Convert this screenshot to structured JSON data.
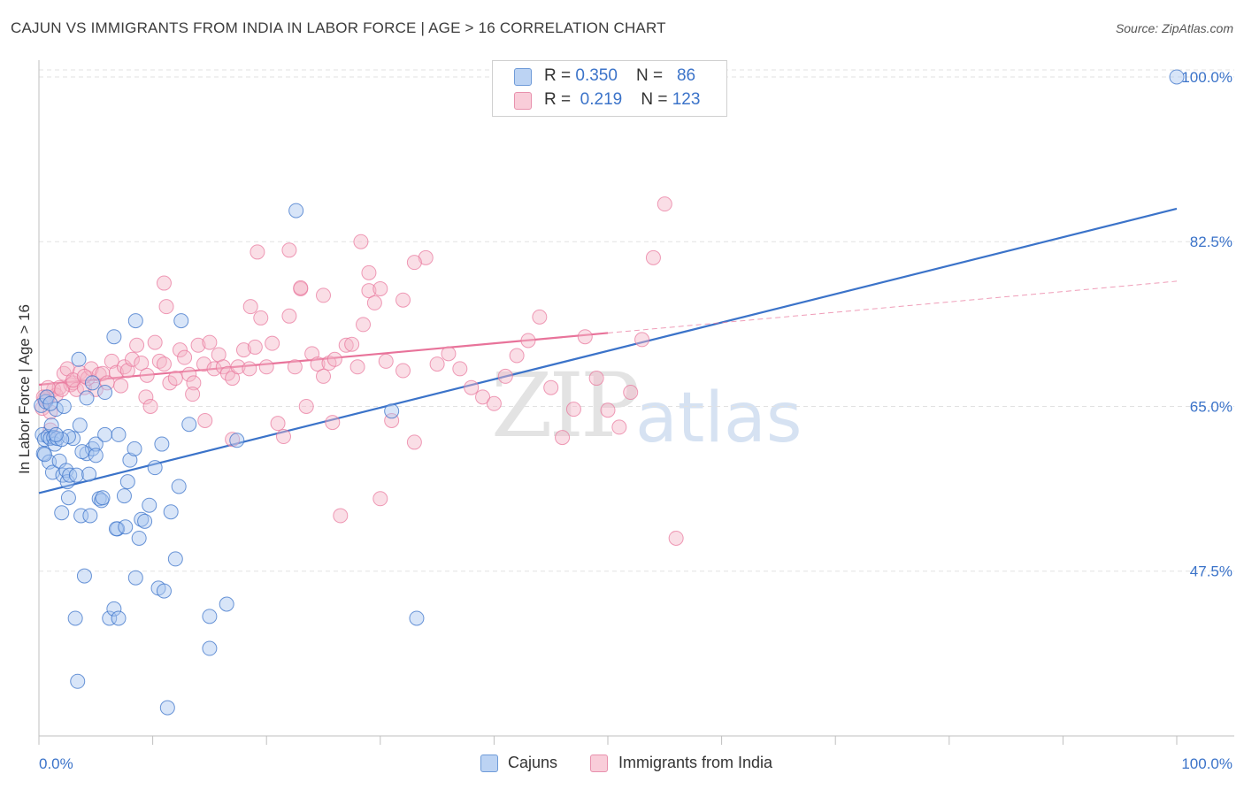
{
  "header": {
    "title": "CAJUN VS IMMIGRANTS FROM INDIA IN LABOR FORCE | AGE > 16 CORRELATION CHART",
    "source": "Source: ZipAtlas.com"
  },
  "watermark": {
    "zip": "ZIP",
    "atlas": "atlas"
  },
  "legend": {
    "rows": [
      {
        "r_label": "R = ",
        "r_value": "0.350",
        "n_label": "N = ",
        "n_value": "86",
        "color": "#a9c6ef"
      },
      {
        "r_label": "R = ",
        "r_value": "0.219",
        "n_label": "N = ",
        "n_value": "123",
        "color": "#f4b6c8"
      }
    ]
  },
  "bottom_legend": {
    "items": [
      "Cajuns",
      "Immigrants from India"
    ]
  },
  "chart_data": {
    "type": "scatter",
    "title": "CAJUN VS IMMIGRANTS FROM INDIA IN LABOR FORCE | AGE > 16 CORRELATION CHART",
    "ylabel": "In Labor Force | Age > 16",
    "xlabel": "",
    "xlim": [
      0,
      100
    ],
    "ylim": [
      30,
      101.5
    ],
    "x_tick_labels": [
      "0.0%",
      "100.0%"
    ],
    "y_tick_labels": [
      "47.5%",
      "65.0%",
      "82.5%",
      "100.0%"
    ],
    "y_ticks": [
      47.5,
      65.0,
      82.5,
      100.0
    ],
    "grid": true,
    "colors": {
      "cajuns": "#3b73c9",
      "india": "#e8739a",
      "cajuns_fill": "#a9c6ef",
      "india_fill": "#f4b6c8",
      "tick_label": "#3b73c9"
    },
    "series": [
      {
        "name": "Cajuns",
        "trend": {
          "x": [
            0,
            100
          ],
          "y": [
            55.8,
            86.0
          ]
        },
        "points": [
          [
            0.2,
            65.1
          ],
          [
            0.3,
            62.0
          ],
          [
            0.4,
            60.0
          ],
          [
            0.5,
            61.5
          ],
          [
            0.6,
            65.5
          ],
          [
            0.7,
            66.0
          ],
          [
            0.8,
            61.8
          ],
          [
            0.9,
            59.1
          ],
          [
            1.0,
            61.6
          ],
          [
            1.1,
            63.0
          ],
          [
            1.2,
            58.0
          ],
          [
            1.3,
            61.7
          ],
          [
            1.4,
            61.0
          ],
          [
            1.5,
            64.7
          ],
          [
            1.6,
            61.6
          ],
          [
            1.8,
            59.2
          ],
          [
            2.0,
            53.7
          ],
          [
            2.1,
            57.7
          ],
          [
            2.2,
            65.0
          ],
          [
            2.4,
            58.2
          ],
          [
            2.5,
            57.0
          ],
          [
            2.6,
            55.3
          ],
          [
            2.7,
            57.7
          ],
          [
            3.0,
            61.6
          ],
          [
            3.2,
            42.5
          ],
          [
            3.3,
            57.7
          ],
          [
            3.6,
            63.0
          ],
          [
            3.7,
            53.4
          ],
          [
            4.0,
            47.0
          ],
          [
            4.2,
            60.0
          ],
          [
            4.4,
            57.8
          ],
          [
            4.7,
            60.5
          ],
          [
            5.0,
            61.0
          ],
          [
            5.3,
            55.2
          ],
          [
            5.5,
            55.0
          ],
          [
            5.8,
            62.0
          ],
          [
            6.2,
            42.5
          ],
          [
            6.6,
            43.5
          ],
          [
            6.9,
            52.0
          ],
          [
            7.0,
            62.0
          ],
          [
            7.5,
            55.5
          ],
          [
            7.8,
            57.0
          ],
          [
            8.0,
            59.3
          ],
          [
            8.5,
            46.8
          ],
          [
            8.8,
            51.0
          ],
          [
            9.0,
            53.0
          ],
          [
            9.7,
            54.5
          ],
          [
            10.2,
            58.5
          ],
          [
            10.5,
            45.7
          ],
          [
            11.0,
            45.4
          ],
          [
            11.6,
            53.8
          ],
          [
            12.0,
            48.8
          ],
          [
            12.3,
            56.5
          ],
          [
            13.2,
            63.1
          ],
          [
            15.0,
            42.7
          ],
          [
            15.0,
            39.3
          ],
          [
            16.5,
            44.0
          ],
          [
            2.6,
            61.8
          ],
          [
            3.4,
            35.8
          ],
          [
            4.7,
            67.5
          ],
          [
            7.0,
            42.5
          ],
          [
            8.4,
            60.5
          ],
          [
            11.3,
            33.0
          ],
          [
            5.6,
            55.3
          ],
          [
            4.5,
            53.4
          ],
          [
            2.0,
            61.5
          ],
          [
            0.5,
            59.9
          ],
          [
            3.8,
            60.2
          ],
          [
            6.8,
            52.0
          ],
          [
            7.6,
            52.2
          ],
          [
            9.3,
            52.8
          ],
          [
            10.8,
            61.0
          ],
          [
            12.5,
            74.1
          ],
          [
            8.5,
            74.1
          ],
          [
            6.6,
            72.4
          ],
          [
            22.6,
            85.8
          ],
          [
            33.2,
            42.5
          ],
          [
            31.0,
            64.5
          ],
          [
            17.4,
            61.4
          ],
          [
            3.5,
            70.0
          ],
          [
            4.2,
            65.9
          ],
          [
            5.0,
            59.8
          ],
          [
            1.5,
            62.0
          ],
          [
            1.0,
            65.3
          ],
          [
            100.0,
            100.0
          ],
          [
            5.8,
            66.5
          ]
        ]
      },
      {
        "name": "Immigrants from India",
        "trend": {
          "x": [
            0,
            50
          ],
          "y": [
            67.3,
            72.8
          ]
        },
        "trend_ext": {
          "x": [
            50,
            100
          ],
          "y": [
            72.8,
            78.3
          ]
        },
        "points": [
          [
            0.3,
            64.8
          ],
          [
            0.5,
            65.8
          ],
          [
            0.8,
            66.0
          ],
          [
            1.0,
            64.4
          ],
          [
            1.3,
            66.8
          ],
          [
            1.5,
            66.2
          ],
          [
            1.8,
            67.0
          ],
          [
            2.2,
            68.5
          ],
          [
            2.5,
            69.0
          ],
          [
            2.8,
            67.3
          ],
          [
            3.0,
            67.5
          ],
          [
            3.3,
            66.8
          ],
          [
            3.6,
            68.6
          ],
          [
            4.0,
            67.0
          ],
          [
            4.3,
            68.0
          ],
          [
            4.6,
            69.0
          ],
          [
            5.0,
            66.8
          ],
          [
            5.3,
            68.4
          ],
          [
            5.6,
            68.5
          ],
          [
            6.0,
            67.5
          ],
          [
            6.4,
            69.8
          ],
          [
            6.8,
            68.6
          ],
          [
            7.2,
            67.2
          ],
          [
            7.5,
            69.2
          ],
          [
            7.8,
            68.8
          ],
          [
            8.2,
            70.0
          ],
          [
            8.6,
            71.5
          ],
          [
            9.0,
            69.6
          ],
          [
            9.4,
            66.0
          ],
          [
            9.8,
            65.0
          ],
          [
            10.2,
            71.8
          ],
          [
            10.6,
            69.8
          ],
          [
            11.0,
            69.5
          ],
          [
            11.5,
            67.5
          ],
          [
            12.0,
            68.0
          ],
          [
            12.4,
            71.0
          ],
          [
            12.8,
            70.2
          ],
          [
            13.2,
            68.4
          ],
          [
            13.6,
            67.5
          ],
          [
            14.0,
            71.5
          ],
          [
            14.5,
            69.5
          ],
          [
            15.0,
            71.8
          ],
          [
            15.4,
            69.0
          ],
          [
            15.8,
            70.5
          ],
          [
            16.2,
            69.2
          ],
          [
            16.6,
            68.5
          ],
          [
            17.0,
            68.0
          ],
          [
            17.5,
            69.2
          ],
          [
            18.0,
            71.0
          ],
          [
            18.5,
            69.0
          ],
          [
            19.0,
            71.3
          ],
          [
            19.5,
            74.4
          ],
          [
            20.0,
            69.2
          ],
          [
            20.5,
            71.7
          ],
          [
            21.0,
            63.2
          ],
          [
            21.5,
            61.8
          ],
          [
            22.0,
            74.6
          ],
          [
            22.5,
            69.2
          ],
          [
            23.0,
            77.5
          ],
          [
            23.5,
            65.0
          ],
          [
            24.0,
            70.6
          ],
          [
            24.5,
            69.5
          ],
          [
            25.0,
            68.2
          ],
          [
            25.5,
            69.6
          ],
          [
            26.0,
            70.0
          ],
          [
            26.5,
            53.4
          ],
          [
            27.0,
            71.5
          ],
          [
            27.5,
            71.6
          ],
          [
            28.0,
            69.2
          ],
          [
            28.5,
            73.7
          ],
          [
            29.0,
            77.3
          ],
          [
            29.5,
            76.0
          ],
          [
            30.0,
            55.2
          ],
          [
            30.5,
            69.8
          ],
          [
            31.0,
            63.5
          ],
          [
            32.0,
            68.8
          ],
          [
            33.0,
            61.2
          ],
          [
            34.0,
            80.8
          ],
          [
            35.0,
            69.5
          ],
          [
            36.0,
            70.6
          ],
          [
            37.0,
            69.0
          ],
          [
            38.0,
            67.0
          ],
          [
            39.0,
            66.0
          ],
          [
            40.0,
            65.3
          ],
          [
            41.0,
            68.2
          ],
          [
            42.0,
            70.4
          ],
          [
            43.0,
            72.0
          ],
          [
            44.0,
            74.5
          ],
          [
            45.0,
            67.0
          ],
          [
            46.0,
            61.7
          ],
          [
            47.0,
            64.7
          ],
          [
            48.0,
            72.4
          ],
          [
            49.0,
            68.0
          ],
          [
            50.0,
            64.6
          ],
          [
            51.0,
            62.8
          ],
          [
            52.0,
            66.5
          ],
          [
            53.0,
            72.1
          ],
          [
            54.0,
            80.8
          ],
          [
            55.0,
            86.5
          ],
          [
            56.0,
            51.0
          ],
          [
            11.0,
            78.1
          ],
          [
            11.2,
            75.6
          ],
          [
            18.6,
            75.6
          ],
          [
            19.2,
            81.4
          ],
          [
            22.0,
            81.6
          ],
          [
            23.0,
            77.6
          ],
          [
            25.0,
            76.8
          ],
          [
            28.3,
            82.5
          ],
          [
            29.0,
            79.2
          ],
          [
            30.0,
            77.5
          ],
          [
            32.0,
            76.3
          ],
          [
            33.0,
            80.3
          ],
          [
            14.6,
            63.5
          ],
          [
            17.0,
            61.5
          ],
          [
            25.8,
            63.3
          ],
          [
            9.5,
            68.3
          ],
          [
            13.5,
            66.3
          ],
          [
            1.0,
            62.5
          ],
          [
            0.8,
            67.0
          ],
          [
            0.4,
            66.0
          ],
          [
            2.0,
            66.8
          ],
          [
            3.0,
            67.8
          ],
          [
            4.0,
            68.2
          ]
        ]
      }
    ]
  }
}
